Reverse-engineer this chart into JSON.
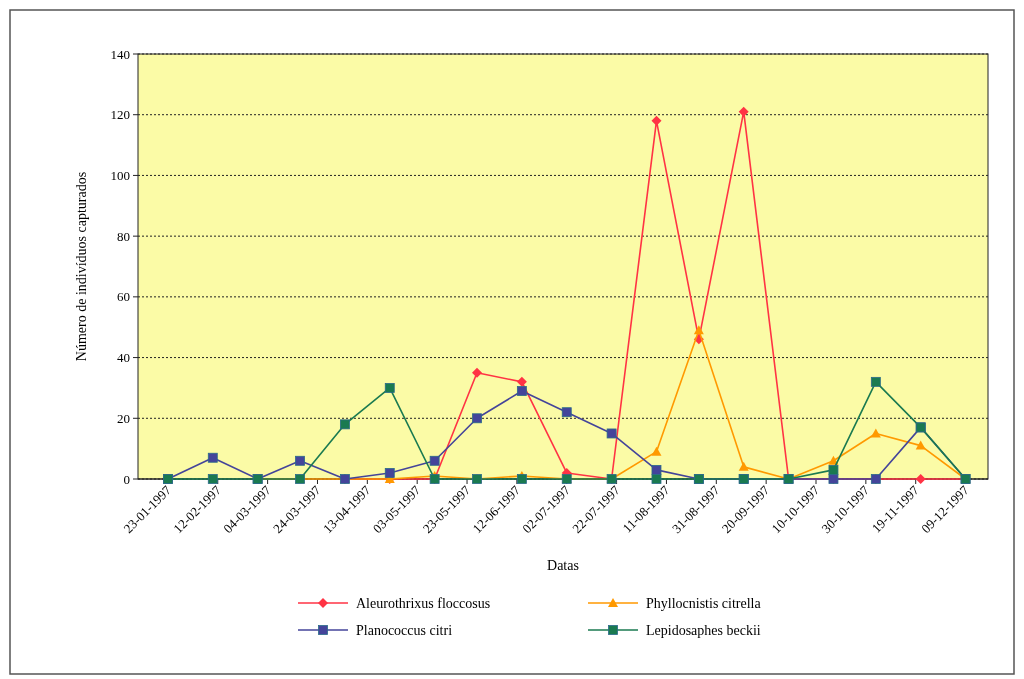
{
  "chart_data": {
    "type": "line",
    "xlabel": "Datas",
    "ylabel": "Número de indivíduos capturados",
    "x": [
      "1997-01-23",
      "1997-02-10",
      "1997-02-28",
      "1997-03-17",
      "1997-04-04",
      "1997-04-22",
      "1997-05-10",
      "1997-05-27",
      "1997-06-14",
      "1997-07-02",
      "1997-07-20",
      "1997-08-07",
      "1997-08-24",
      "1997-09-11",
      "1997-09-29",
      "1997-10-17",
      "1997-11-03",
      "1997-11-21",
      "1997-12-09"
    ],
    "xlim": [
      "1997-01-11",
      "1997-12-18"
    ],
    "xticks": [
      {
        "value": "1997-01-23",
        "label": "23-01-1997"
      },
      {
        "value": "1997-02-12",
        "label": "12-02-1997"
      },
      {
        "value": "1997-03-04",
        "label": "04-03-1997"
      },
      {
        "value": "1997-03-24",
        "label": "24-03-1997"
      },
      {
        "value": "1997-04-13",
        "label": "13-04-1997"
      },
      {
        "value": "1997-05-03",
        "label": "03-05-1997"
      },
      {
        "value": "1997-05-23",
        "label": "23-05-1997"
      },
      {
        "value": "1997-06-12",
        "label": "12-06-1997"
      },
      {
        "value": "1997-07-02",
        "label": "02-07-1997"
      },
      {
        "value": "1997-07-22",
        "label": "22-07-1997"
      },
      {
        "value": "1997-08-11",
        "label": "11-08-1997"
      },
      {
        "value": "1997-08-31",
        "label": "31-08-1997"
      },
      {
        "value": "1997-09-20",
        "label": "20-09-1997"
      },
      {
        "value": "1997-10-10",
        "label": "10-10-1997"
      },
      {
        "value": "1997-10-30",
        "label": "30-10-1997"
      },
      {
        "value": "1997-11-19",
        "label": "19-11-1997"
      },
      {
        "value": "1997-12-09",
        "label": "09-12-1997"
      }
    ],
    "ylim": [
      0,
      140
    ],
    "yticks": [
      0,
      20,
      40,
      60,
      80,
      100,
      120,
      140
    ],
    "grid": "y",
    "legend": "bottom",
    "series": [
      {
        "name": "Aleurothrixus floccosus",
        "color": "#ff3344",
        "marker": "diamond",
        "values": [
          null,
          null,
          null,
          null,
          0,
          0,
          0,
          35,
          32,
          2,
          0,
          118,
          46,
          121,
          0,
          0,
          0,
          0,
          0
        ]
      },
      {
        "name": "Phyllocnistis citrella",
        "color": "#ff9900",
        "marker": "triangle",
        "values": [
          null,
          null,
          0,
          0,
          0,
          0,
          1,
          0,
          1,
          0,
          0,
          9,
          49,
          4,
          0,
          6,
          15,
          11,
          0
        ]
      },
      {
        "name": "Planococcus citri",
        "color": "#44449a",
        "marker": "square",
        "values": [
          0,
          7,
          0,
          6,
          0,
          2,
          6,
          20,
          29,
          22,
          15,
          3,
          0,
          0,
          0,
          0,
          0,
          17,
          0
        ]
      },
      {
        "name": "Lepidosaphes beckii",
        "color": "#1a7a50",
        "marker": "square",
        "values": [
          0,
          0,
          0,
          0,
          18,
          30,
          0,
          0,
          0,
          0,
          0,
          0,
          0,
          0,
          0,
          3,
          32,
          17,
          0
        ]
      }
    ]
  }
}
